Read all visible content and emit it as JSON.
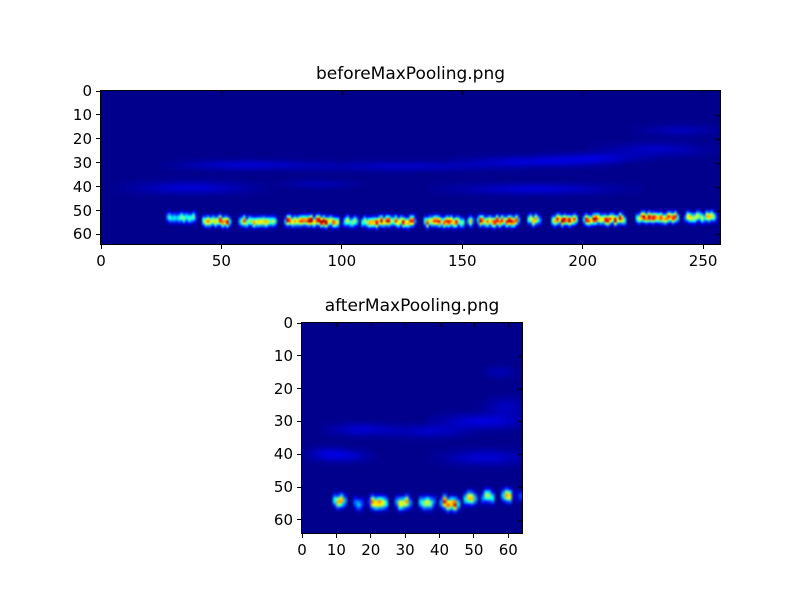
{
  "figure": {
    "background_color": "#ffffff",
    "frame_color": "#000000",
    "text_color": "#000000",
    "colormap": "jet",
    "colormap_min_color": "#000080"
  },
  "chart_data": [
    {
      "type": "heatmap",
      "title": "beforeMaxPooling.png",
      "x_range": [
        0,
        257
      ],
      "y_range": [
        0,
        64
      ],
      "image_cols": 257,
      "image_rows": 64,
      "x_ticks": [
        0,
        50,
        100,
        150,
        200,
        250
      ],
      "y_ticks": [
        0,
        10,
        20,
        30,
        40,
        50,
        60
      ],
      "background_value": 0.012,
      "seed": 3,
      "band": {
        "description": "bright horizontal activation band near row 53",
        "sigma": 1.35,
        "segments": [
          [
            26,
            40,
            0.45,
            52.5
          ],
          [
            41,
            54,
            0.88,
            54.0
          ],
          [
            56,
            73,
            0.82,
            54.3
          ],
          [
            75,
            99,
            0.97,
            54.0
          ],
          [
            99,
            107,
            0.55,
            54.2
          ],
          [
            107,
            131,
            0.85,
            54.3
          ],
          [
            133,
            151,
            0.82,
            54.3
          ],
          [
            151,
            155,
            0.6,
            54.2
          ],
          [
            155,
            174,
            0.9,
            54.0
          ],
          [
            176,
            183,
            0.72,
            53.5
          ],
          [
            186,
            198,
            1.0,
            53.5
          ],
          [
            199,
            218,
            0.88,
            53.2
          ],
          [
            221,
            240,
            0.92,
            52.6
          ],
          [
            241,
            256,
            0.62,
            52.2
          ]
        ]
      },
      "smudges": [
        [
          60,
          30.5,
          18,
          1.4,
          0.07
        ],
        [
          125,
          31,
          25,
          1.4,
          0.055
        ],
        [
          180,
          29,
          18,
          1.6,
          0.075
        ],
        [
          205,
          27.5,
          12,
          1.5,
          0.06
        ],
        [
          37,
          40,
          16,
          1.8,
          0.07
        ],
        [
          180,
          40.5,
          22,
          1.6,
          0.07
        ],
        [
          230,
          24,
          14,
          2.0,
          0.055
        ],
        [
          240,
          16,
          10,
          1.6,
          0.045
        ],
        [
          90,
          38.5,
          10,
          1.2,
          0.04
        ]
      ]
    },
    {
      "type": "heatmap",
      "title": "afterMaxPooling.png",
      "x_range": [
        0,
        64
      ],
      "y_range": [
        0,
        64
      ],
      "image_cols": 64,
      "image_rows": 64,
      "x_ticks": [
        0,
        10,
        20,
        30,
        40,
        50,
        60
      ],
      "y_ticks": [
        0,
        10,
        20,
        30,
        40,
        50,
        60
      ],
      "background_value": 0.012,
      "seed": 11,
      "band": {
        "description": "bright horizontal activation band near row 53",
        "sigma": 1.2,
        "segments": [
          [
            8,
            13,
            0.78,
            53.8
          ],
          [
            14,
            18,
            0.55,
            54.4
          ],
          [
            18.5,
            25,
            0.92,
            54.2
          ],
          [
            26,
            32,
            0.65,
            54.3
          ],
          [
            33,
            39,
            0.7,
            54.3
          ],
          [
            39,
            46,
            0.88,
            54.5
          ],
          [
            46,
            51,
            1.0,
            53.2
          ],
          [
            51,
            56,
            0.82,
            52.5
          ],
          [
            57,
            61.5,
            0.9,
            52.2
          ],
          [
            61.5,
            64,
            0.55,
            52.4
          ]
        ]
      },
      "smudges": [
        [
          17,
          32,
          6,
          1.3,
          0.07
        ],
        [
          36,
          32.5,
          7,
          1.3,
          0.06
        ],
        [
          52,
          29.5,
          8,
          1.6,
          0.08
        ],
        [
          7,
          39.5,
          3.5,
          1.4,
          0.08
        ],
        [
          14,
          40,
          3.5,
          1.2,
          0.06
        ],
        [
          53,
          40.5,
          8,
          1.6,
          0.07
        ],
        [
          59,
          25,
          4,
          2.0,
          0.05
        ],
        [
          57,
          14.5,
          3,
          1.2,
          0.04
        ]
      ]
    }
  ]
}
